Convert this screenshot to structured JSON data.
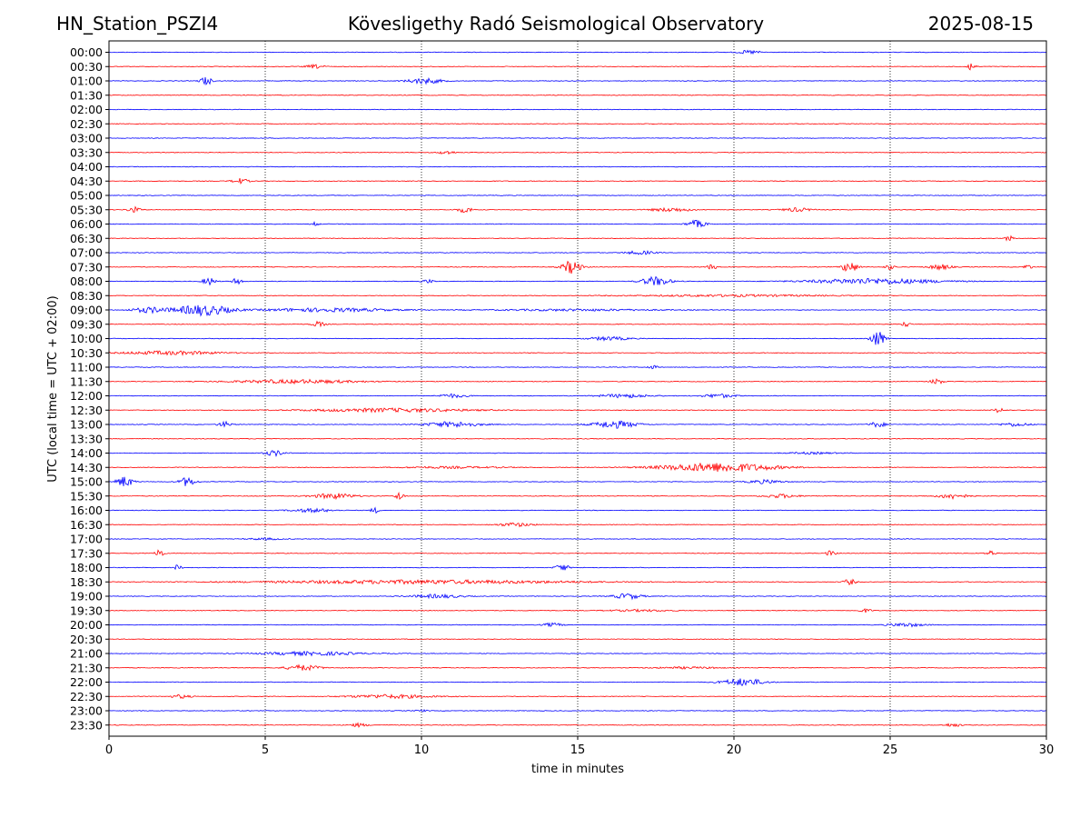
{
  "header": {
    "station": "HN_Station_PSZI4",
    "title": "Kövesligethy Radó Seismological Observatory",
    "date": "2025-08-15"
  },
  "chart_data": {
    "type": "line",
    "title": "Kövesligethy Radó Seismological Observatory",
    "xlabel": "time in minutes",
    "ylabel": "UTC (local time = UTC + 02:00)",
    "xlim": [
      0,
      30
    ],
    "x_ticks": [
      0,
      5,
      10,
      15,
      20,
      25,
      30
    ],
    "grid": "vertical dotted lines at 5, 10, 15, 20, 25 minutes",
    "row_labels": [
      "00:00",
      "00:30",
      "01:00",
      "01:30",
      "02:00",
      "02:30",
      "03:00",
      "03:30",
      "04:00",
      "04:30",
      "05:00",
      "05:30",
      "06:00",
      "06:30",
      "07:00",
      "07:30",
      "08:00",
      "08:30",
      "09:00",
      "09:30",
      "10:00",
      "10:30",
      "11:00",
      "11:30",
      "12:00",
      "12:30",
      "13:00",
      "13:30",
      "14:00",
      "14:30",
      "15:00",
      "15:30",
      "16:00",
      "16:30",
      "17:00",
      "17:30",
      "18:00",
      "18:30",
      "19:00",
      "19:30",
      "20:00",
      "20:30",
      "21:00",
      "21:30",
      "22:00",
      "22:30",
      "23:00",
      "23:30"
    ],
    "colors": [
      "#0000ff",
      "#ff0000"
    ],
    "events": [
      {
        "row": 0,
        "t": 20.5,
        "a": 2,
        "w": 0.6
      },
      {
        "row": 1,
        "t": 6.6,
        "a": 2,
        "w": 0.5
      },
      {
        "row": 1,
        "t": 27.6,
        "a": 5,
        "w": 0.15
      },
      {
        "row": 2,
        "t": 3.1,
        "a": 5,
        "w": 0.25
      },
      {
        "row": 2,
        "t": 10.1,
        "a": 3,
        "w": 1.0
      },
      {
        "row": 7,
        "t": 10.8,
        "a": 2,
        "w": 0.4
      },
      {
        "row": 9,
        "t": 4.2,
        "a": 3,
        "w": 0.4
      },
      {
        "row": 11,
        "t": 0.8,
        "a": 3,
        "w": 0.3
      },
      {
        "row": 11,
        "t": 11.4,
        "a": 3,
        "w": 0.4
      },
      {
        "row": 11,
        "t": 18.0,
        "a": 2,
        "w": 1.2
      },
      {
        "row": 11,
        "t": 22.0,
        "a": 2,
        "w": 0.8
      },
      {
        "row": 12,
        "t": 6.6,
        "a": 2,
        "w": 0.15
      },
      {
        "row": 12,
        "t": 18.8,
        "a": 4,
        "w": 0.5
      },
      {
        "row": 13,
        "t": 28.8,
        "a": 3,
        "w": 0.15
      },
      {
        "row": 14,
        "t": 17.0,
        "a": 2,
        "w": 0.8
      },
      {
        "row": 15,
        "t": 14.8,
        "a": 7,
        "w": 0.5
      },
      {
        "row": 15,
        "t": 23.7,
        "a": 6,
        "w": 0.4
      },
      {
        "row": 15,
        "t": 19.3,
        "a": 3,
        "w": 0.2
      },
      {
        "row": 15,
        "t": 25.0,
        "a": 3,
        "w": 0.2
      },
      {
        "row": 15,
        "t": 26.6,
        "a": 3,
        "w": 0.6
      },
      {
        "row": 15,
        "t": 29.4,
        "a": 3,
        "w": 0.15
      },
      {
        "row": 16,
        "t": 3.2,
        "a": 4,
        "w": 0.3
      },
      {
        "row": 16,
        "t": 4.1,
        "a": 5,
        "w": 0.15
      },
      {
        "row": 16,
        "t": 10.2,
        "a": 2,
        "w": 0.3
      },
      {
        "row": 16,
        "t": 17.5,
        "a": 5,
        "w": 0.8
      },
      {
        "row": 16,
        "t": 24.5,
        "a": 3,
        "w": 4.0
      },
      {
        "row": 17,
        "t": 20.0,
        "a": 1,
        "w": 6.0
      },
      {
        "row": 18,
        "t": 1.3,
        "a": 3,
        "w": 1.0
      },
      {
        "row": 18,
        "t": 3.0,
        "a": 6,
        "w": 1.6
      },
      {
        "row": 18,
        "t": 7.0,
        "a": 2,
        "w": 4.0
      },
      {
        "row": 18,
        "t": 15.0,
        "a": 1,
        "w": 5.0
      },
      {
        "row": 19,
        "t": 6.7,
        "a": 3,
        "w": 0.3
      },
      {
        "row": 19,
        "t": 25.5,
        "a": 3,
        "w": 0.15
      },
      {
        "row": 20,
        "t": 24.6,
        "a": 9,
        "w": 0.35
      },
      {
        "row": 20,
        "t": 16.0,
        "a": 2,
        "w": 1.2
      },
      {
        "row": 21,
        "t": 2.0,
        "a": 2,
        "w": 3.0
      },
      {
        "row": 22,
        "t": 17.4,
        "a": 2,
        "w": 0.2
      },
      {
        "row": 23,
        "t": 6.0,
        "a": 2,
        "w": 4.0
      },
      {
        "row": 23,
        "t": 26.5,
        "a": 3,
        "w": 0.3
      },
      {
        "row": 24,
        "t": 11.0,
        "a": 2,
        "w": 0.8
      },
      {
        "row": 24,
        "t": 16.5,
        "a": 2,
        "w": 1.5
      },
      {
        "row": 24,
        "t": 19.5,
        "a": 2,
        "w": 1.0
      },
      {
        "row": 25,
        "t": 9.0,
        "a": 2,
        "w": 5.0
      },
      {
        "row": 25,
        "t": 28.5,
        "a": 3,
        "w": 0.2
      },
      {
        "row": 26,
        "t": 3.7,
        "a": 3,
        "w": 0.3
      },
      {
        "row": 26,
        "t": 11.0,
        "a": 3,
        "w": 1.6
      },
      {
        "row": 26,
        "t": 16.2,
        "a": 4,
        "w": 1.3
      },
      {
        "row": 26,
        "t": 24.6,
        "a": 3,
        "w": 0.4
      },
      {
        "row": 26,
        "t": 29.0,
        "a": 2,
        "w": 0.8
      },
      {
        "row": 28,
        "t": 5.3,
        "a": 3,
        "w": 0.5
      },
      {
        "row": 28,
        "t": 22.5,
        "a": 1,
        "w": 1.5
      },
      {
        "row": 29,
        "t": 19.5,
        "a": 5,
        "w": 3.5
      },
      {
        "row": 29,
        "t": 11.0,
        "a": 1,
        "w": 3.0
      },
      {
        "row": 30,
        "t": 0.5,
        "a": 6,
        "w": 0.4
      },
      {
        "row": 30,
        "t": 2.5,
        "a": 5,
        "w": 0.4
      },
      {
        "row": 30,
        "t": 21.0,
        "a": 2,
        "w": 1.0
      },
      {
        "row": 31,
        "t": 7.2,
        "a": 3,
        "w": 1.2
      },
      {
        "row": 31,
        "t": 9.3,
        "a": 5,
        "w": 0.15
      },
      {
        "row": 31,
        "t": 21.5,
        "a": 2,
        "w": 1.0
      },
      {
        "row": 31,
        "t": 27.0,
        "a": 3,
        "w": 0.8
      },
      {
        "row": 32,
        "t": 6.5,
        "a": 2,
        "w": 1.2
      },
      {
        "row": 32,
        "t": 8.5,
        "a": 3,
        "w": 0.15
      },
      {
        "row": 33,
        "t": 13.0,
        "a": 2,
        "w": 1.0
      },
      {
        "row": 34,
        "t": 5.0,
        "a": 1,
        "w": 1.0
      },
      {
        "row": 35,
        "t": 1.6,
        "a": 6,
        "w": 0.15
      },
      {
        "row": 35,
        "t": 23.1,
        "a": 3,
        "w": 0.2
      },
      {
        "row": 35,
        "t": 28.2,
        "a": 3,
        "w": 0.2
      },
      {
        "row": 36,
        "t": 2.2,
        "a": 3,
        "w": 0.15
      },
      {
        "row": 36,
        "t": 14.5,
        "a": 4,
        "w": 0.3
      },
      {
        "row": 37,
        "t": 10.0,
        "a": 2,
        "w": 10.0
      },
      {
        "row": 37,
        "t": 23.7,
        "a": 3,
        "w": 0.3
      },
      {
        "row": 38,
        "t": 10.5,
        "a": 2,
        "w": 1.5
      },
      {
        "row": 38,
        "t": 16.6,
        "a": 3,
        "w": 0.8
      },
      {
        "row": 39,
        "t": 17.0,
        "a": 1,
        "w": 2.0
      },
      {
        "row": 39,
        "t": 24.2,
        "a": 2,
        "w": 0.3
      },
      {
        "row": 40,
        "t": 14.2,
        "a": 2,
        "w": 0.5
      },
      {
        "row": 40,
        "t": 25.5,
        "a": 2,
        "w": 1.0
      },
      {
        "row": 42,
        "t": 6.5,
        "a": 2,
        "w": 3.0
      },
      {
        "row": 43,
        "t": 6.2,
        "a": 3,
        "w": 1.0
      },
      {
        "row": 43,
        "t": 18.5,
        "a": 1,
        "w": 2.0
      },
      {
        "row": 44,
        "t": 20.3,
        "a": 4,
        "w": 1.2
      },
      {
        "row": 45,
        "t": 9.0,
        "a": 2,
        "w": 2.5
      },
      {
        "row": 45,
        "t": 2.3,
        "a": 2,
        "w": 0.5
      },
      {
        "row": 46,
        "t": 10.0,
        "a": 1,
        "w": 0.3
      },
      {
        "row": 47,
        "t": 8.0,
        "a": 2,
        "w": 0.4
      },
      {
        "row": 47,
        "t": 27.0,
        "a": 2,
        "w": 0.4
      }
    ]
  }
}
